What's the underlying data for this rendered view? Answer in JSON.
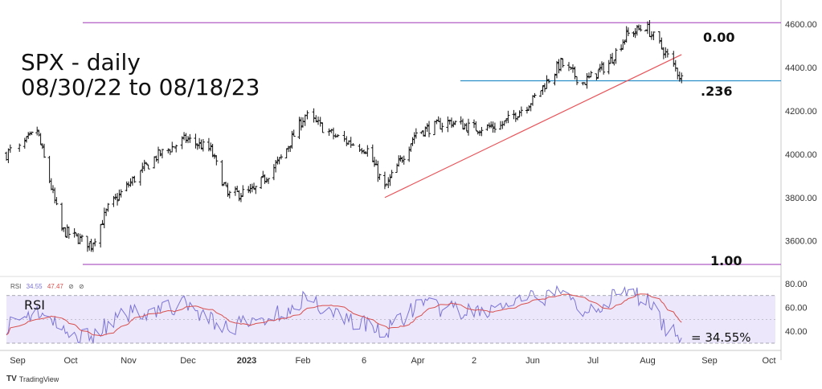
{
  "title_lines": [
    "SPX - daily",
    "08/30/22 to 08/18/23"
  ],
  "fib_labels": {
    "top": "0.00",
    "mid": ".236",
    "bottom": "1.00"
  },
  "rsi": {
    "title": "RSI",
    "legend_label": "RSI",
    "legend_values": [
      "34.55",
      "47.47"
    ],
    "legend_flags": [
      "⊘",
      "⊘"
    ],
    "value_label": "= 34.55%"
  },
  "branding": {
    "icon": "TV",
    "name": "TradingView"
  },
  "colors": {
    "bars": "#111111",
    "fib_line": "#b15cc4",
    "level_line": "#2a8fc7",
    "trend_line": "#e8545a",
    "rsi_line": "#7b74d6",
    "rsi_ma": "#d9504e",
    "rsi_band": "#ece7fb"
  },
  "chart_data": {
    "type": "ohlc",
    "price_axis": {
      "ticks": [
        "4600.00",
        "4400.00",
        "4200.00",
        "4000.00",
        "3800.00",
        "3600.00"
      ],
      "tick_values": [
        4600,
        4400,
        4200,
        4000,
        3800,
        3600
      ],
      "range": [
        3480,
        4660
      ]
    },
    "rsi_axis": {
      "ticks": [
        "80.00",
        "60.00",
        "40.00"
      ],
      "tick_values": [
        80,
        60,
        40
      ],
      "range": [
        28,
        84
      ],
      "band": [
        30,
        70
      ],
      "midline": 50
    },
    "time_axis": {
      "labels": [
        "Sep",
        "Oct",
        "Nov",
        "Dec",
        "2023",
        "Feb",
        "6",
        "Apr",
        "2",
        "Jun",
        "Jul",
        "Aug",
        "Sep",
        "Oct"
      ],
      "bold": [
        "2023"
      ],
      "label_positions": [
        0,
        1,
        2,
        3,
        4,
        5,
        6,
        7,
        8,
        9,
        10,
        11,
        12,
        13
      ]
    },
    "date_range": [
      "08/30/22",
      "08/18/23"
    ],
    "anchors": [
      {
        "date": "2022-08-30",
        "close": 4000
      },
      {
        "date": "2022-09-12",
        "close": 4110
      },
      {
        "date": "2022-09-26",
        "close": 3650
      },
      {
        "date": "2022-10-12",
        "close": 3580
      },
      {
        "date": "2022-10-21",
        "close": 3750
      },
      {
        "date": "2022-11-01",
        "close": 3860
      },
      {
        "date": "2022-11-15",
        "close": 3990
      },
      {
        "date": "2022-11-30",
        "close": 4070
      },
      {
        "date": "2022-12-13",
        "close": 4020
      },
      {
        "date": "2022-12-22",
        "close": 3810
      },
      {
        "date": "2023-01-05",
        "close": 3830
      },
      {
        "date": "2023-01-20",
        "close": 3980
      },
      {
        "date": "2023-02-02",
        "close": 4180
      },
      {
        "date": "2023-02-16",
        "close": 4080
      },
      {
        "date": "2023-03-03",
        "close": 4020
      },
      {
        "date": "2023-03-13",
        "close": 3840
      },
      {
        "date": "2023-03-31",
        "close": 4100
      },
      {
        "date": "2023-04-18",
        "close": 4150
      },
      {
        "date": "2023-05-01",
        "close": 4120
      },
      {
        "date": "2023-05-15",
        "close": 4130
      },
      {
        "date": "2023-06-01",
        "close": 4250
      },
      {
        "date": "2023-06-15",
        "close": 4420
      },
      {
        "date": "2023-06-26",
        "close": 4330
      },
      {
        "date": "2023-07-10",
        "close": 4420
      },
      {
        "date": "2023-07-20",
        "close": 4550
      },
      {
        "date": "2023-07-31",
        "close": 4590
      },
      {
        "date": "2023-08-09",
        "close": 4480
      },
      {
        "date": "2023-08-18",
        "close": 4350
      }
    ],
    "levels": [
      {
        "name": "0.00",
        "value": 4607
      },
      {
        "name": ".236",
        "value": 4339
      },
      {
        "name": "1.00",
        "value": 3491
      }
    ],
    "trend_line": {
      "from": {
        "date": "2023-03-13",
        "value": 3800
      },
      "to": {
        "date": "2023-08-18",
        "value": 4460
      }
    },
    "rsi_anchors": [
      {
        "date": "2022-08-30",
        "value": 45
      },
      {
        "date": "2022-09-12",
        "value": 58
      },
      {
        "date": "2022-09-30",
        "value": 35
      },
      {
        "date": "2022-10-13",
        "value": 38
      },
      {
        "date": "2022-11-01",
        "value": 55
      },
      {
        "date": "2022-11-30",
        "value": 62
      },
      {
        "date": "2022-12-22",
        "value": 42
      },
      {
        "date": "2023-01-20",
        "value": 55
      },
      {
        "date": "2023-02-02",
        "value": 68
      },
      {
        "date": "2023-02-16",
        "value": 55
      },
      {
        "date": "2023-03-13",
        "value": 38
      },
      {
        "date": "2023-03-31",
        "value": 62
      },
      {
        "date": "2023-05-01",
        "value": 55
      },
      {
        "date": "2023-06-15",
        "value": 72
      },
      {
        "date": "2023-06-26",
        "value": 58
      },
      {
        "date": "2023-07-20",
        "value": 72
      },
      {
        "date": "2023-07-31",
        "value": 68
      },
      {
        "date": "2023-08-09",
        "value": 45
      },
      {
        "date": "2023-08-18",
        "value": 34.55
      }
    ],
    "rsi_ma_last": 47.47
  }
}
